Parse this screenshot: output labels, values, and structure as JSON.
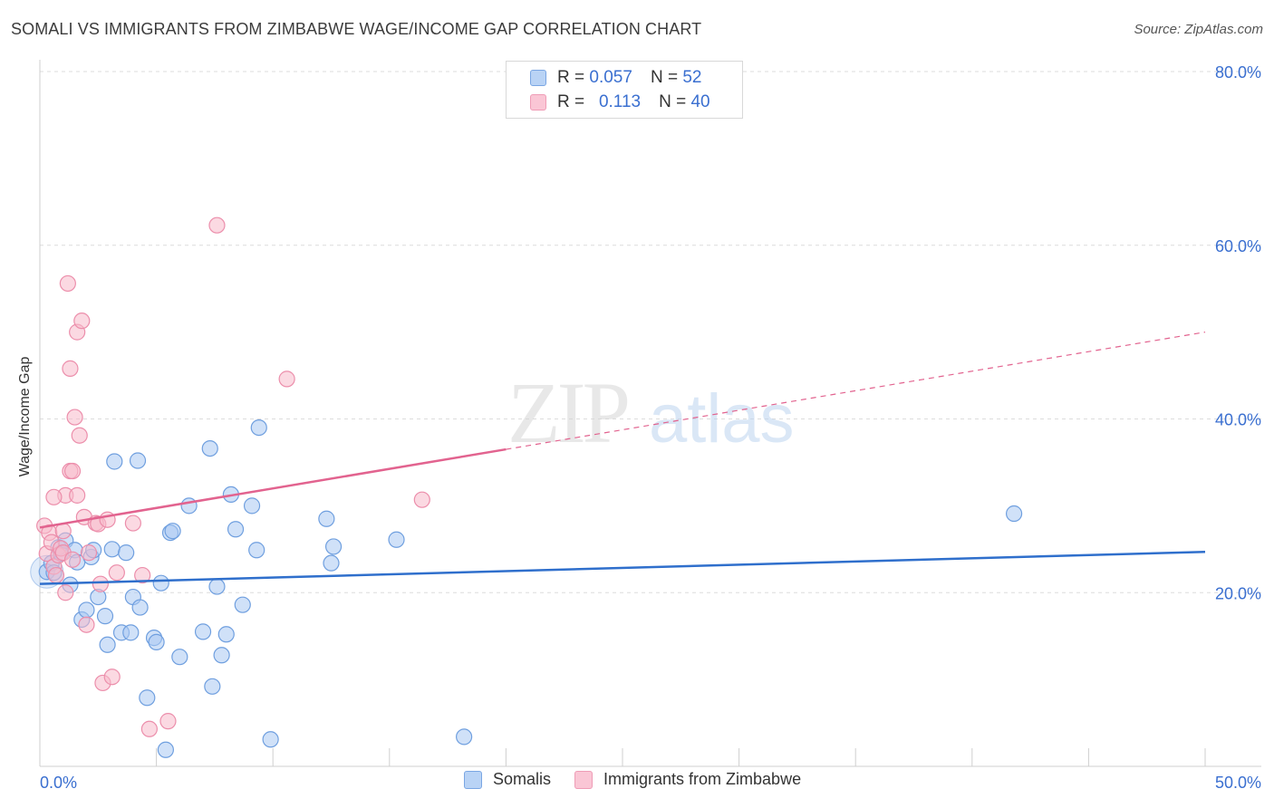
{
  "title": "SOMALI VS IMMIGRANTS FROM ZIMBABWE WAGE/INCOME GAP CORRELATION CHART",
  "source": "Source: ZipAtlas.com",
  "watermark": {
    "zip": "ZIP",
    "atlas": "atlas"
  },
  "legend_top": {
    "rows": [
      {
        "r_label": "R =",
        "r_value": "0.057",
        "n_label": "N =",
        "n_value": "52"
      },
      {
        "r_label": "R =",
        "r_value": "0.113",
        "n_label": "N =",
        "n_value": "40"
      }
    ]
  },
  "colors": {
    "somalis_fill": "#a9c8f2",
    "somalis_stroke": "#6f9fdf",
    "somalis_line": "#2f6fcc",
    "zimbabwe_fill": "#f7b9cb",
    "zimbabwe_stroke": "#ec8eab",
    "zimbabwe_line": "#e2638f",
    "tick_label": "#3a6fd0",
    "grid": "#dcdcdc"
  },
  "chart_data": {
    "type": "scatter",
    "title": "SOMALI VS IMMIGRANTS FROM ZIMBABWE WAGE/INCOME GAP CORRELATION CHART",
    "xlabel": "",
    "ylabel": "Wage/Income Gap",
    "xlim": [
      0,
      50
    ],
    "ylim": [
      0,
      80
    ],
    "x_tick_labels": [
      "0.0%",
      "50.0%"
    ],
    "y_ticks": [
      20,
      40,
      60,
      80
    ],
    "y_tick_labels": [
      "20.0%",
      "40.0%",
      "60.0%",
      "80.0%"
    ],
    "legend_position": "bottom-center",
    "series": [
      {
        "name": "Somalis",
        "r": 0.057,
        "n": 52,
        "trend": {
          "x": [
            0,
            50
          ],
          "y": [
            21.0,
            24.7
          ]
        },
        "points": [
          [
            0.3,
            22.4
          ],
          [
            0.5,
            23.4
          ],
          [
            0.6,
            22.3
          ],
          [
            0.8,
            25.2
          ],
          [
            0.9,
            24.5
          ],
          [
            1.1,
            26.0
          ],
          [
            1.3,
            20.9
          ],
          [
            1.5,
            24.9
          ],
          [
            1.6,
            23.5
          ],
          [
            1.8,
            16.9
          ],
          [
            2.0,
            18.0
          ],
          [
            2.2,
            24.1
          ],
          [
            2.3,
            24.9
          ],
          [
            2.5,
            19.5
          ],
          [
            2.8,
            17.3
          ],
          [
            2.9,
            14.0
          ],
          [
            3.1,
            25.0
          ],
          [
            3.2,
            35.1
          ],
          [
            3.5,
            15.4
          ],
          [
            3.7,
            24.6
          ],
          [
            3.9,
            15.4
          ],
          [
            4.0,
            19.5
          ],
          [
            4.2,
            35.2
          ],
          [
            4.3,
            18.3
          ],
          [
            4.6,
            7.9
          ],
          [
            4.9,
            14.8
          ],
          [
            5.0,
            14.3
          ],
          [
            5.2,
            21.1
          ],
          [
            5.4,
            1.9
          ],
          [
            5.6,
            26.9
          ],
          [
            5.7,
            27.1
          ],
          [
            6.0,
            12.6
          ],
          [
            6.4,
            30.0
          ],
          [
            7.0,
            15.5
          ],
          [
            7.3,
            36.6
          ],
          [
            7.4,
            9.2
          ],
          [
            7.6,
            20.7
          ],
          [
            7.8,
            12.8
          ],
          [
            8.0,
            15.2
          ],
          [
            8.2,
            31.3
          ],
          [
            8.4,
            27.3
          ],
          [
            8.7,
            18.6
          ],
          [
            9.1,
            30.0
          ],
          [
            9.3,
            24.9
          ],
          [
            9.4,
            39.0
          ],
          [
            9.9,
            3.1
          ],
          [
            12.3,
            28.5
          ],
          [
            12.5,
            23.4
          ],
          [
            12.6,
            25.3
          ],
          [
            15.3,
            26.1
          ],
          [
            18.2,
            3.4
          ],
          [
            41.8,
            29.1
          ]
        ]
      },
      {
        "name": "Immigrants from Zimbabwe",
        "r": 0.113,
        "n": 40,
        "trend": {
          "x": [
            0,
            20.0,
            50
          ],
          "y": [
            27.5,
            36.5,
            50.0
          ]
        },
        "trend_solid_until_x": 20.0,
        "points": [
          [
            0.2,
            27.7
          ],
          [
            0.3,
            24.5
          ],
          [
            0.4,
            26.9
          ],
          [
            0.5,
            25.8
          ],
          [
            0.6,
            23.0
          ],
          [
            0.7,
            22.0
          ],
          [
            0.8,
            24.3
          ],
          [
            0.9,
            25.1
          ],
          [
            1.0,
            27.1
          ],
          [
            1.0,
            24.6
          ],
          [
            1.1,
            31.2
          ],
          [
            1.1,
            20.0
          ],
          [
            1.2,
            55.6
          ],
          [
            1.3,
            34.0
          ],
          [
            1.3,
            45.8
          ],
          [
            1.4,
            34.0
          ],
          [
            1.4,
            23.8
          ],
          [
            1.5,
            40.2
          ],
          [
            1.6,
            50.0
          ],
          [
            1.6,
            31.2
          ],
          [
            1.7,
            38.1
          ],
          [
            1.8,
            51.3
          ],
          [
            1.9,
            28.7
          ],
          [
            2.0,
            16.3
          ],
          [
            2.1,
            24.6
          ],
          [
            2.4,
            28.0
          ],
          [
            2.5,
            27.9
          ],
          [
            2.6,
            21.0
          ],
          [
            2.7,
            9.6
          ],
          [
            2.9,
            28.4
          ],
          [
            3.1,
            10.3
          ],
          [
            3.3,
            22.3
          ],
          [
            4.0,
            28.0
          ],
          [
            4.4,
            22.0
          ],
          [
            4.7,
            4.3
          ],
          [
            5.5,
            5.2
          ],
          [
            7.6,
            62.3
          ],
          [
            10.6,
            44.6
          ],
          [
            16.4,
            30.7
          ],
          [
            0.6,
            31.0
          ]
        ]
      }
    ]
  },
  "legend_bottom": {
    "items": [
      {
        "label": "Somalis"
      },
      {
        "label": "Immigrants from Zimbabwe"
      }
    ]
  }
}
